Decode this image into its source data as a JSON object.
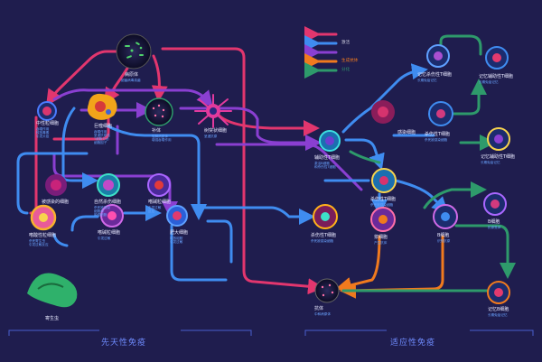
{
  "legend": [
    {
      "label": "",
      "color": "#e2366e"
    },
    {
      "label": "激活",
      "color": "#3f8cf0"
    },
    {
      "label": "",
      "color": "#8a3fd1"
    },
    {
      "label": "生成抗体",
      "color": "#f07a1e"
    },
    {
      "label": "分化",
      "color": "#2e9a6b"
    }
  ],
  "sections": {
    "innate": "先天性免疫",
    "adaptive": "适应性免疫"
  },
  "nodes": {
    "pathogen": {
      "label": "病原体",
      "sub": [
        "细菌病毒真菌"
      ]
    },
    "neutrophil": {
      "label": "中性粒细胞",
      "sub": [
        "吞噬作用",
        "释放毒素",
        "引发炎症"
      ]
    },
    "macrophage": {
      "label": "巨噬细胞",
      "sub": [
        "吞噬作用",
        "呈递抗原给",
        "T细胞分泌",
        "细胞因子"
      ]
    },
    "complement": {
      "label": "补体",
      "sub": [
        "裂解病原体",
        "增强吞噬作用"
      ]
    },
    "dendritic": {
      "label": "树突状细胞",
      "sub": [
        "呈递抗原"
      ]
    },
    "infected": {
      "label": "被感染的细胞",
      "sub": []
    },
    "nk": {
      "label": "自然杀伤细胞",
      "sub": [
        "杀死被感染",
        "细胞和",
        "肿瘤细胞"
      ]
    },
    "basophil": {
      "label": "嗜碱粒细胞",
      "sub": [
        "引发过敏",
        "反应"
      ]
    },
    "eosinophil": {
      "label": "嗜酸性粒细胞",
      "sub": [
        "杀死寄生虫",
        "引发过敏反应"
      ]
    },
    "mast": {
      "label": "肥大细胞",
      "sub": [
        "释放组胺",
        "引发过敏"
      ]
    },
    "parasite": {
      "label": "寄生虫",
      "sub": []
    },
    "helper_t": {
      "label": "辅助性T细胞",
      "sub": [
        "激活B细胞",
        "和杀伤性T细胞"
      ]
    },
    "infected2": {
      "label": "感染细胞",
      "sub": []
    },
    "killer_t": {
      "label": "杀伤性T细胞",
      "sub": [
        "杀死被感染细胞"
      ]
    },
    "mem_killer": {
      "label": "记忆杀伤性T细胞",
      "sub": [
        "长期免疫记忆"
      ]
    },
    "mem_helper": {
      "label": "记忆辅助性T细胞",
      "sub": [
        "长期免疫记忆"
      ]
    },
    "b_mem": {
      "label": "B细胞",
      "sub": [
        "抗原受体"
      ]
    },
    "plasma": {
      "label": "浆细胞",
      "sub": [
        "产生抗体"
      ]
    },
    "b_cell": {
      "label": "B细胞",
      "sub": [
        "识别抗原"
      ]
    },
    "mem_b": {
      "label": "记忆B细胞",
      "sub": [
        "长期免疫记忆"
      ]
    },
    "mem_b2": {
      "label": "记忆B细胞",
      "sub": [
        "长期记忆"
      ]
    },
    "antibody": {
      "label": "抗体",
      "sub": [
        "中和病原体"
      ]
    }
  },
  "colors": {
    "bg": "#1f1d4e",
    "pink": "#e2366e",
    "blue": "#3f8cf0",
    "purple": "#8a3fd1",
    "orange": "#f07a1e",
    "green": "#2e9a6b",
    "label_blue": "#6aa4ff"
  }
}
